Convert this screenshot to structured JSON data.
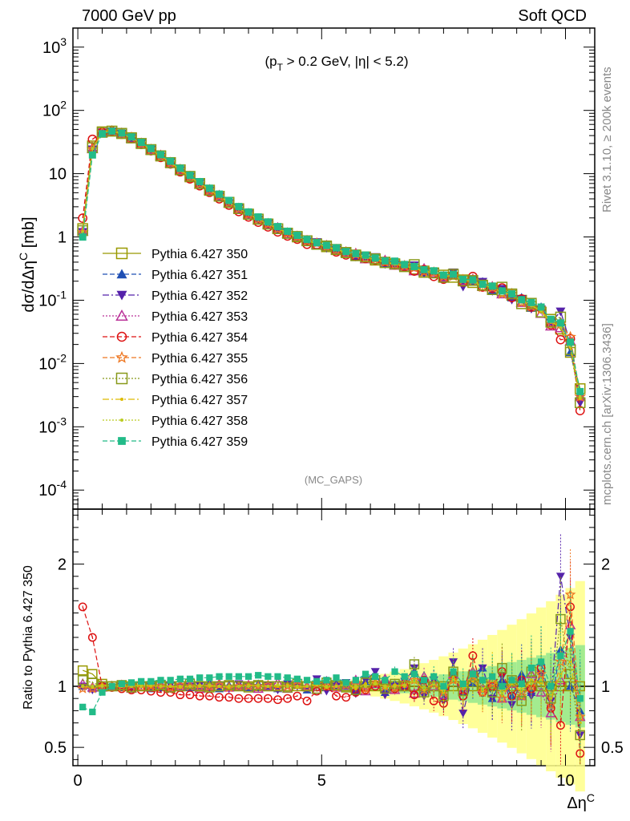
{
  "header": {
    "left": "7000 GeV pp",
    "right": "Soft QCD"
  },
  "side": {
    "top": "Rivet 3.1.10, ≥ 200k events",
    "bottom": "mcplots.cern.ch [arXiv:1306.3436]"
  },
  "watermark": "(MC_GAPS)",
  "chart_data": [
    {
      "type": "line",
      "panel": "main",
      "title": "(p_T > 0.2 GeV, |η| < 5.2)",
      "ylabel": "dσ/dΔη^C [mb]",
      "xlabel": "",
      "yscale": "log",
      "ylim": [
        5e-05,
        2000
      ],
      "xlim": [
        -0.1,
        10.6
      ],
      "legend_position": "middle-left",
      "grid": false,
      "x": [
        0.1,
        0.3,
        0.5,
        0.7,
        0.9,
        1.1,
        1.3,
        1.5,
        1.7,
        1.9,
        2.1,
        2.3,
        2.5,
        2.7,
        2.9,
        3.1,
        3.3,
        3.5,
        3.7,
        3.9,
        4.1,
        4.3,
        4.5,
        4.7,
        4.9,
        5.1,
        5.3,
        5.5,
        5.7,
        5.9,
        6.1,
        6.3,
        6.5,
        6.7,
        6.9,
        7.1,
        7.3,
        7.5,
        7.7,
        7.9,
        8.1,
        8.3,
        8.5,
        8.7,
        8.9,
        9.1,
        9.3,
        9.5,
        9.7,
        9.9,
        10.1,
        10.3
      ],
      "reference": [
        1.2,
        25,
        45,
        47,
        43,
        37,
        30,
        24,
        19,
        15,
        11.5,
        8.9,
        7,
        5.5,
        4.4,
        3.5,
        2.8,
        2.3,
        1.9,
        1.6,
        1.35,
        1.15,
        1.0,
        0.87,
        0.78,
        0.7,
        0.63,
        0.57,
        0.52,
        0.47,
        0.43,
        0.4,
        0.37,
        0.34,
        0.31,
        0.29,
        0.27,
        0.25,
        0.23,
        0.21,
        0.19,
        0.17,
        0.155,
        0.14,
        0.12,
        0.1,
        0.08,
        0.065,
        0.05,
        0.035,
        0.015,
        0.004
      ],
      "series": [
        {
          "name": "Pythia 6.427 350",
          "color": "#999900",
          "marker": "open-square",
          "dash": "none"
        },
        {
          "name": "Pythia 6.427 351",
          "color": "#1f4fb4",
          "marker": "filled-triangle-up",
          "dash": "6,3"
        },
        {
          "name": "Pythia 6.427 352",
          "color": "#5522aa",
          "marker": "filled-triangle-down",
          "dash": "8,3,2,3"
        },
        {
          "name": "Pythia 6.427 353",
          "color": "#bb3399",
          "marker": "open-triangle-up",
          "dash": "2,2"
        },
        {
          "name": "Pythia 6.427 354",
          "color": "#dd1111",
          "marker": "open-circle",
          "dash": "6,3"
        },
        {
          "name": "Pythia 6.427 355",
          "color": "#ee7722",
          "marker": "star",
          "dash": "6,3"
        },
        {
          "name": "Pythia 6.427 356",
          "color": "#88991a",
          "marker": "open-square",
          "dash": "2,2"
        },
        {
          "name": "Pythia 6.427 357",
          "color": "#ddbb00",
          "marker": "small-dot",
          "dash": "8,3,2,3"
        },
        {
          "name": "Pythia 6.427 358",
          "color": "#bbcc22",
          "marker": "small-dot",
          "dash": "2,2"
        },
        {
          "name": "Pythia 6.427 359",
          "color": "#22bb88",
          "marker": "filled-square",
          "dash": "6,3"
        }
      ],
      "yticks": [
        "10^-4",
        "10^-3",
        "10^-2",
        "10^-1",
        "1",
        "10",
        "10^2",
        "10^3"
      ]
    },
    {
      "type": "line",
      "panel": "ratio",
      "ylabel": "Ratio to Pythia 6.427 350",
      "xlabel": "Δη^C",
      "ylim": [
        0.35,
        2.45
      ],
      "xlim": [
        -0.1,
        10.6
      ],
      "xticks": [
        "0",
        "5",
        "10"
      ],
      "yticks": [
        "0.5",
        "1",
        "2"
      ],
      "x": [
        0.1,
        0.3,
        0.5,
        0.7,
        0.9,
        1.1,
        1.3,
        1.5,
        1.7,
        1.9,
        2.1,
        2.3,
        2.5,
        2.7,
        2.9,
        3.1,
        3.3,
        3.5,
        3.7,
        3.9,
        4.1,
        4.3,
        4.5,
        4.7,
        4.9,
        5.1,
        5.3,
        5.5,
        5.7,
        5.9,
        6.1,
        6.3,
        6.5,
        6.7,
        6.9,
        7.1,
        7.3,
        7.5,
        7.7,
        7.9,
        8.1,
        8.3,
        8.5,
        8.7,
        8.9,
        9.1,
        9.3,
        9.5,
        9.7,
        9.9,
        10.1,
        10.3
      ],
      "ratios": [
        [
          1.13,
          1.1,
          1.02,
          1.0,
          1.0,
          1.0,
          1.0,
          1.0,
          1.0,
          1.0,
          1.0,
          1.0,
          1.0,
          1.0,
          1.0,
          1.0,
          1.0,
          1.0,
          1.0,
          1.0,
          1.0,
          1.0,
          1.0,
          1.0,
          1.0,
          1.0,
          1.0,
          1.0,
          1.0,
          1.0,
          1.0,
          1.0,
          1.0,
          1.0,
          1.0,
          1.0,
          1.0,
          1.0,
          1.0,
          1.0,
          1.0,
          1.0,
          1.0,
          1.0,
          1.0,
          1.0,
          1.0,
          1.0,
          1.0,
          1.0,
          1.0,
          1.0
        ],
        [
          1.0,
          0.98,
          1.0,
          1.01,
          0.99,
          1.0,
          1.02,
          0.98,
          1.01,
          1.0,
          1.02,
          0.99,
          1.0,
          1.03,
          0.98,
          1.01,
          1.0,
          0.99,
          1.02,
          1.0,
          0.98,
          1.03,
          1.01,
          0.97,
          1.05,
          0.99,
          1.02,
          1.0,
          0.96,
          1.04,
          1.08,
          0.95,
          1.02,
          0.99,
          1.12,
          0.97,
          1.05,
          0.9,
          1.1,
          0.95,
          1.03,
          1.15,
          0.9,
          1.05,
          0.92,
          1.1,
          0.95,
          1.2,
          0.85,
          1.3,
          1.0,
          0.8
        ],
        [
          1.0,
          0.97,
          1.0,
          0.99,
          1.0,
          0.99,
          1.01,
          1.0,
          0.98,
          1.01,
          0.99,
          1.0,
          1.01,
          0.99,
          1.0,
          0.98,
          1.02,
          1.0,
          0.99,
          1.01,
          0.97,
          1.02,
          1.0,
          0.98,
          1.06,
          0.96,
          1.0,
          1.03,
          0.94,
          1.05,
          1.12,
          0.93,
          1.0,
          1.04,
          1.15,
          0.92,
          1.05,
          0.88,
          1.2,
          0.78,
          1.1,
          1.15,
          0.9,
          1.08,
          0.85,
          1.05,
          0.92,
          1.1,
          0.88,
          1.9,
          1.4,
          0.6
        ],
        [
          1.02,
          0.99,
          0.99,
          1.0,
          1.01,
          0.98,
          1.0,
          0.99,
          1.02,
          0.99,
          1.0,
          1.01,
          0.98,
          1.0,
          1.02,
          0.99,
          1.0,
          1.01,
          0.98,
          1.0,
          1.03,
          0.98,
          1.02,
          1.0,
          0.97,
          1.04,
          0.99,
          1.01,
          1.05,
          0.96,
          1.02,
          1.06,
          0.97,
          1.02,
          0.94,
          1.08,
          1.0,
          0.93,
          1.1,
          0.97,
          1.12,
          0.98,
          1.05,
          0.9,
          1.02,
          0.92,
          1.1,
          0.95,
          0.78,
          1.05,
          1.5,
          0.75
        ],
        [
          1.65,
          1.4,
          1.0,
          0.99,
          0.98,
          0.97,
          0.97,
          0.96,
          0.95,
          0.95,
          0.93,
          0.93,
          0.92,
          0.92,
          0.91,
          0.91,
          0.9,
          0.9,
          0.9,
          0.9,
          0.89,
          0.9,
          0.92,
          0.88,
          0.96,
          1.0,
          0.92,
          0.91,
          0.95,
          0.97,
          1.0,
          1.02,
          0.98,
          1.0,
          0.93,
          1.05,
          0.88,
          0.86,
          1.1,
          0.92,
          1.25,
          0.95,
          1.0,
          1.12,
          0.92,
          1.05,
          0.98,
          1.15,
          0.82,
          0.68,
          1.65,
          0.45
        ],
        [
          0.98,
          0.98,
          1.0,
          1.0,
          0.99,
          1.01,
          0.99,
          1.0,
          1.0,
          0.99,
          1.01,
          1.0,
          0.99,
          1.0,
          1.01,
          0.99,
          1.0,
          1.0,
          1.0,
          1.01,
          0.99,
          1.0,
          1.01,
          0.99,
          1.02,
          1.0,
          0.99,
          1.01,
          1.02,
          0.98,
          1.03,
          1.0,
          0.99,
          1.03,
          1.05,
          0.97,
          1.02,
          0.95,
          1.05,
          1.0,
          1.08,
          0.95,
          1.02,
          0.9,
          1.05,
          0.92,
          1.0,
          1.1,
          0.85,
          1.2,
          1.75,
          0.75
        ],
        [
          1.05,
          1.03,
          1.0,
          1.0,
          1.01,
          0.99,
          1.0,
          1.0,
          1.01,
          0.99,
          1.0,
          1.02,
          1.0,
          0.99,
          1.0,
          1.01,
          1.0,
          0.99,
          1.01,
          1.0,
          1.0,
          0.99,
          1.02,
          1.0,
          0.98,
          1.03,
          1.01,
          0.99,
          0.97,
          1.03,
          1.05,
          0.98,
          1.02,
          1.0,
          1.18,
          0.95,
          1.0,
          0.92,
          1.12,
          0.96,
          1.08,
          1.02,
          0.95,
          1.15,
          1.05,
          0.88,
          1.12,
          1.0,
          0.9,
          1.55,
          1.1,
          0.6
        ],
        [
          1.0,
          0.99,
          1.01,
          1.0,
          1.0,
          1.0,
          1.01,
          1.0,
          1.0,
          1.0,
          0.99,
          1.0,
          1.01,
          1.0,
          1.0,
          0.99,
          1.0,
          1.01,
          1.0,
          1.0,
          1.0,
          1.01,
          0.99,
          1.0,
          1.02,
          0.99,
          1.0,
          1.02,
          0.98,
          1.02,
          1.03,
          0.99,
          1.01,
          1.0,
          1.05,
          0.97,
          1.02,
          0.95,
          1.07,
          0.98,
          1.04,
          0.96,
          1.1,
          0.93,
          1.02,
          0.96,
          1.05,
          1.02,
          0.9,
          1.1,
          1.2,
          0.7
        ],
        [
          1.0,
          1.0,
          1.0,
          1.01,
          1.0,
          1.0,
          1.0,
          1.01,
          1.0,
          1.0,
          1.0,
          1.0,
          1.0,
          1.01,
          1.0,
          1.0,
          1.0,
          1.0,
          1.01,
          1.0,
          1.01,
          1.0,
          1.0,
          1.0,
          1.01,
          1.0,
          1.0,
          1.01,
          1.0,
          1.0,
          1.02,
          1.0,
          1.0,
          1.01,
          1.04,
          0.99,
          1.02,
          0.97,
          1.05,
          1.0,
          1.1,
          0.98,
          1.05,
          0.95,
          1.04,
          0.98,
          1.02,
          1.05,
          0.93,
          1.08,
          1.3,
          0.75
        ],
        [
          0.83,
          0.79,
          0.95,
          1.0,
          1.02,
          1.03,
          1.04,
          1.04,
          1.05,
          1.05,
          1.06,
          1.06,
          1.07,
          1.07,
          1.08,
          1.08,
          1.08,
          1.08,
          1.09,
          1.08,
          1.08,
          1.07,
          1.06,
          1.05,
          1.04,
          1.05,
          1.07,
          1.03,
          1.05,
          1.1,
          1.08,
          1.05,
          1.12,
          1.08,
          1.1,
          1.05,
          1.08,
          1.0,
          1.12,
          1.02,
          1.1,
          1.05,
          1.08,
          1.0,
          1.05,
          1.02,
          1.15,
          1.2,
          1.0,
          1.25,
          1.45,
          0.9
        ]
      ]
    }
  ]
}
